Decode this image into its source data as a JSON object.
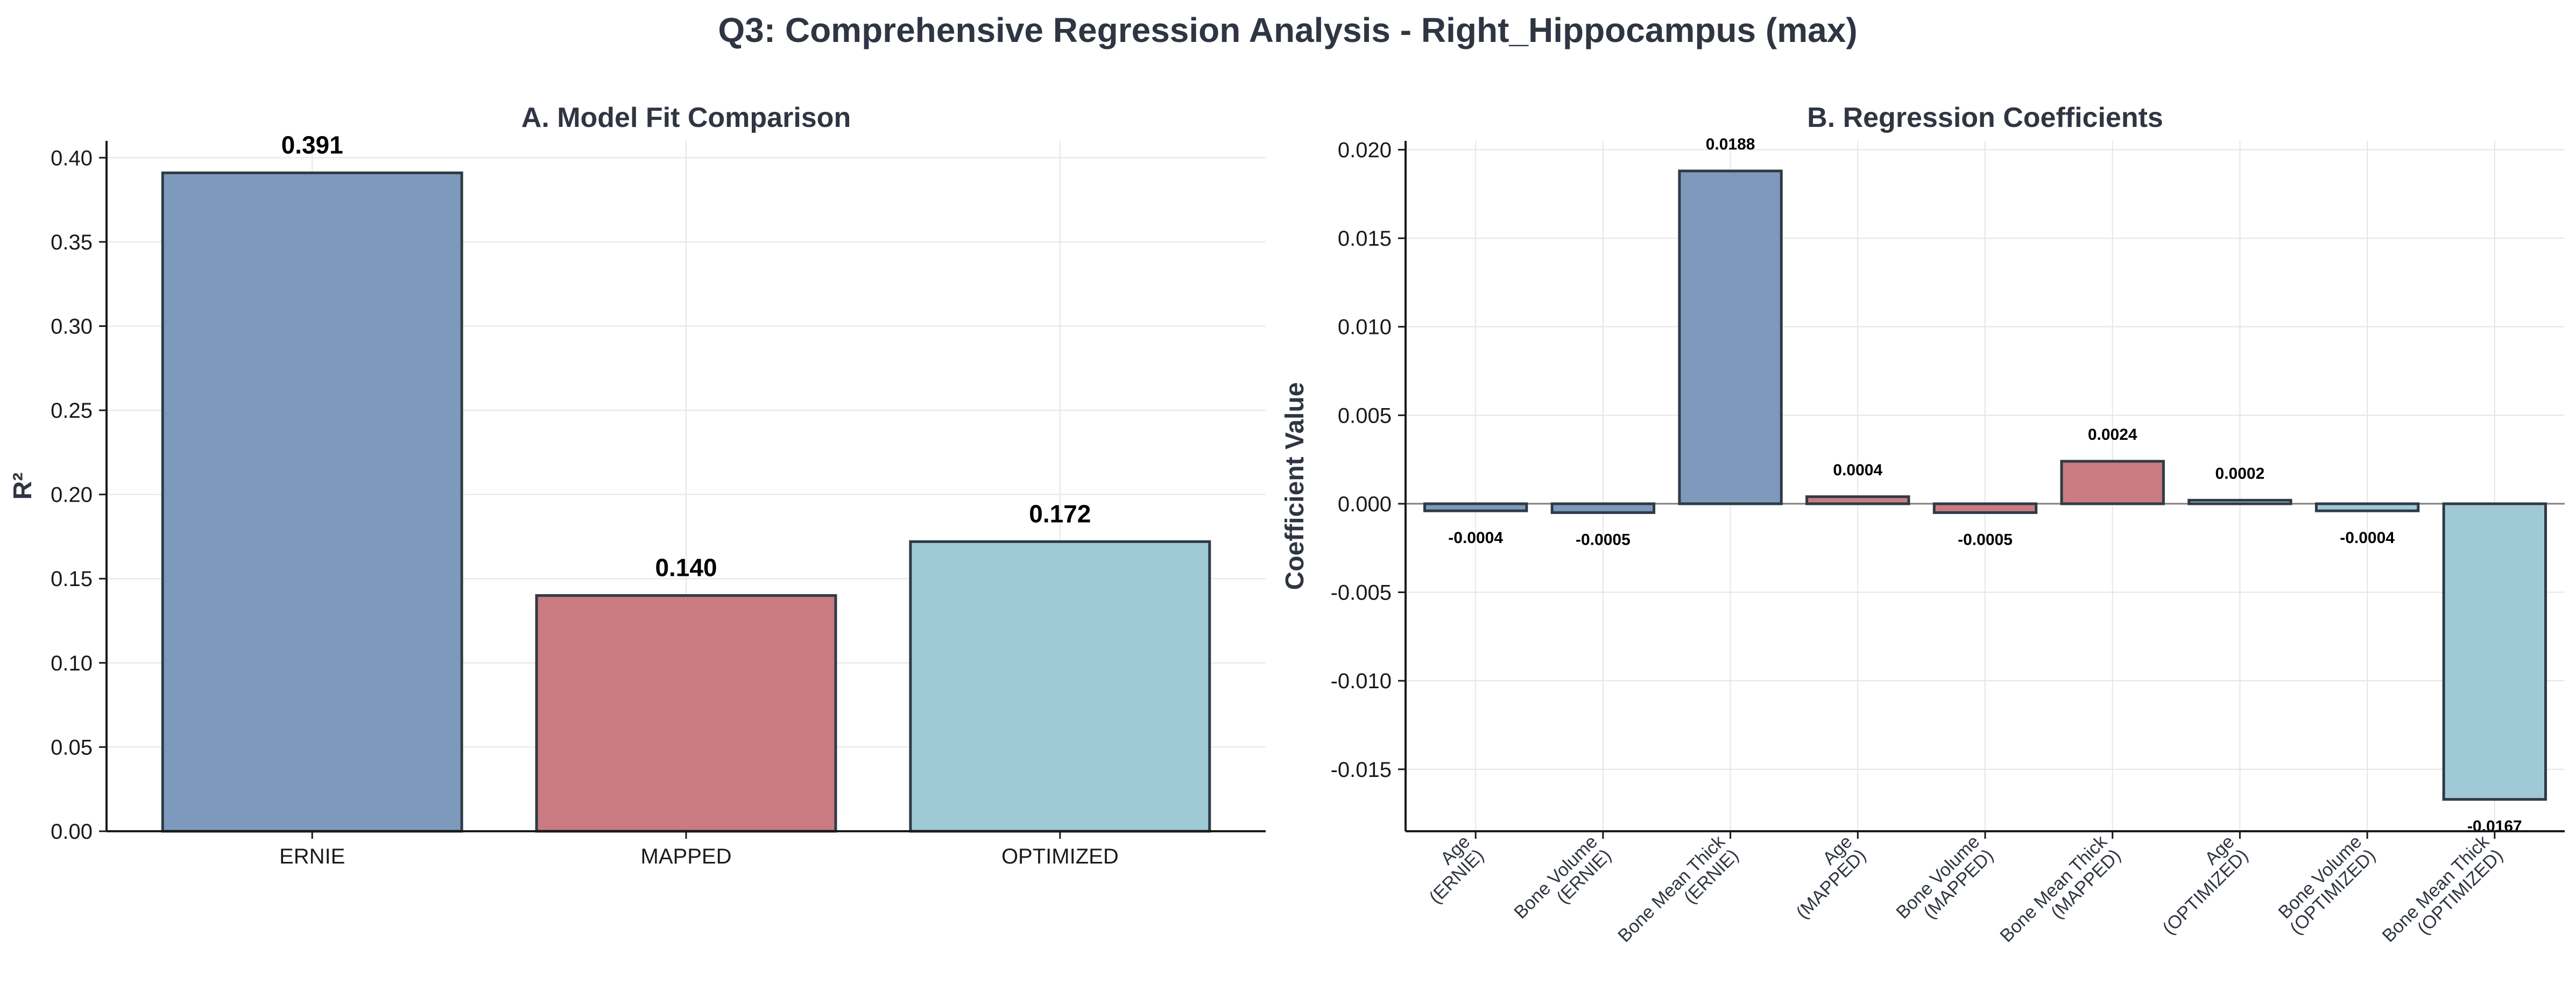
{
  "figure_title": "Q3: Comprehensive Regression Analysis - Right_Hippocampus (max)",
  "colors": {
    "ERNIE": "#7d9abd",
    "MAPPED": "#c97b81",
    "OPTIMIZED": "#a0c9d6"
  },
  "chart_data": [
    {
      "type": "bar",
      "title": "A. Model Fit Comparison",
      "xlabel": "",
      "ylabel": "R²",
      "categories": [
        "ERNIE",
        "MAPPED",
        "OPTIMIZED"
      ],
      "values": [
        0.391,
        0.14,
        0.172
      ],
      "value_labels": [
        "0.391",
        "0.140",
        "0.172"
      ],
      "groups": [
        "ERNIE",
        "MAPPED",
        "OPTIMIZED"
      ],
      "ylim": [
        0,
        0.41
      ],
      "yticks": [
        0.0,
        0.05,
        0.1,
        0.15,
        0.2,
        0.25,
        0.3,
        0.35,
        0.4
      ],
      "ytick_labels": [
        "0.00",
        "0.05",
        "0.10",
        "0.15",
        "0.20",
        "0.25",
        "0.30",
        "0.35",
        "0.40"
      ],
      "grid": true,
      "legend": "none"
    },
    {
      "type": "bar",
      "title": "B. Regression Coefficients",
      "xlabel": "",
      "ylabel": "Coefficient Value",
      "categories": [
        [
          "Age",
          "(ERNIE)"
        ],
        [
          "Bone Volume",
          "(ERNIE)"
        ],
        [
          "Bone Mean Thick",
          "(ERNIE)"
        ],
        [
          "Age",
          "(MAPPED)"
        ],
        [
          "Bone Volume",
          "(MAPPED)"
        ],
        [
          "Bone Mean Thick",
          "(MAPPED)"
        ],
        [
          "Age",
          "(OPTIMIZED)"
        ],
        [
          "Bone Volume",
          "(OPTIMIZED)"
        ],
        [
          "Bone Mean Thick",
          "(OPTIMIZED)"
        ]
      ],
      "values": [
        -0.0004,
        -0.0005,
        0.0188,
        0.0004,
        -0.0005,
        0.0024,
        0.0002,
        -0.0004,
        -0.0167
      ],
      "value_labels": [
        "-0.0004",
        "-0.0005",
        "0.0188",
        "0.0004",
        "-0.0005",
        "0.0024",
        "0.0002",
        "-0.0004",
        "-0.0167"
      ],
      "groups": [
        "ERNIE",
        "ERNIE",
        "ERNIE",
        "MAPPED",
        "MAPPED",
        "MAPPED",
        "OPTIMIZED",
        "OPTIMIZED",
        "OPTIMIZED"
      ],
      "ylim": [
        -0.0185,
        0.0205
      ],
      "yticks": [
        -0.015,
        -0.01,
        -0.005,
        0.0,
        0.005,
        0.01,
        0.015,
        0.02
      ],
      "ytick_labels": [
        "-0.015",
        "-0.010",
        "-0.005",
        "0.000",
        "0.005",
        "0.010",
        "0.015",
        "0.020"
      ],
      "zero_line": true,
      "grid": true,
      "legend": "none"
    }
  ]
}
